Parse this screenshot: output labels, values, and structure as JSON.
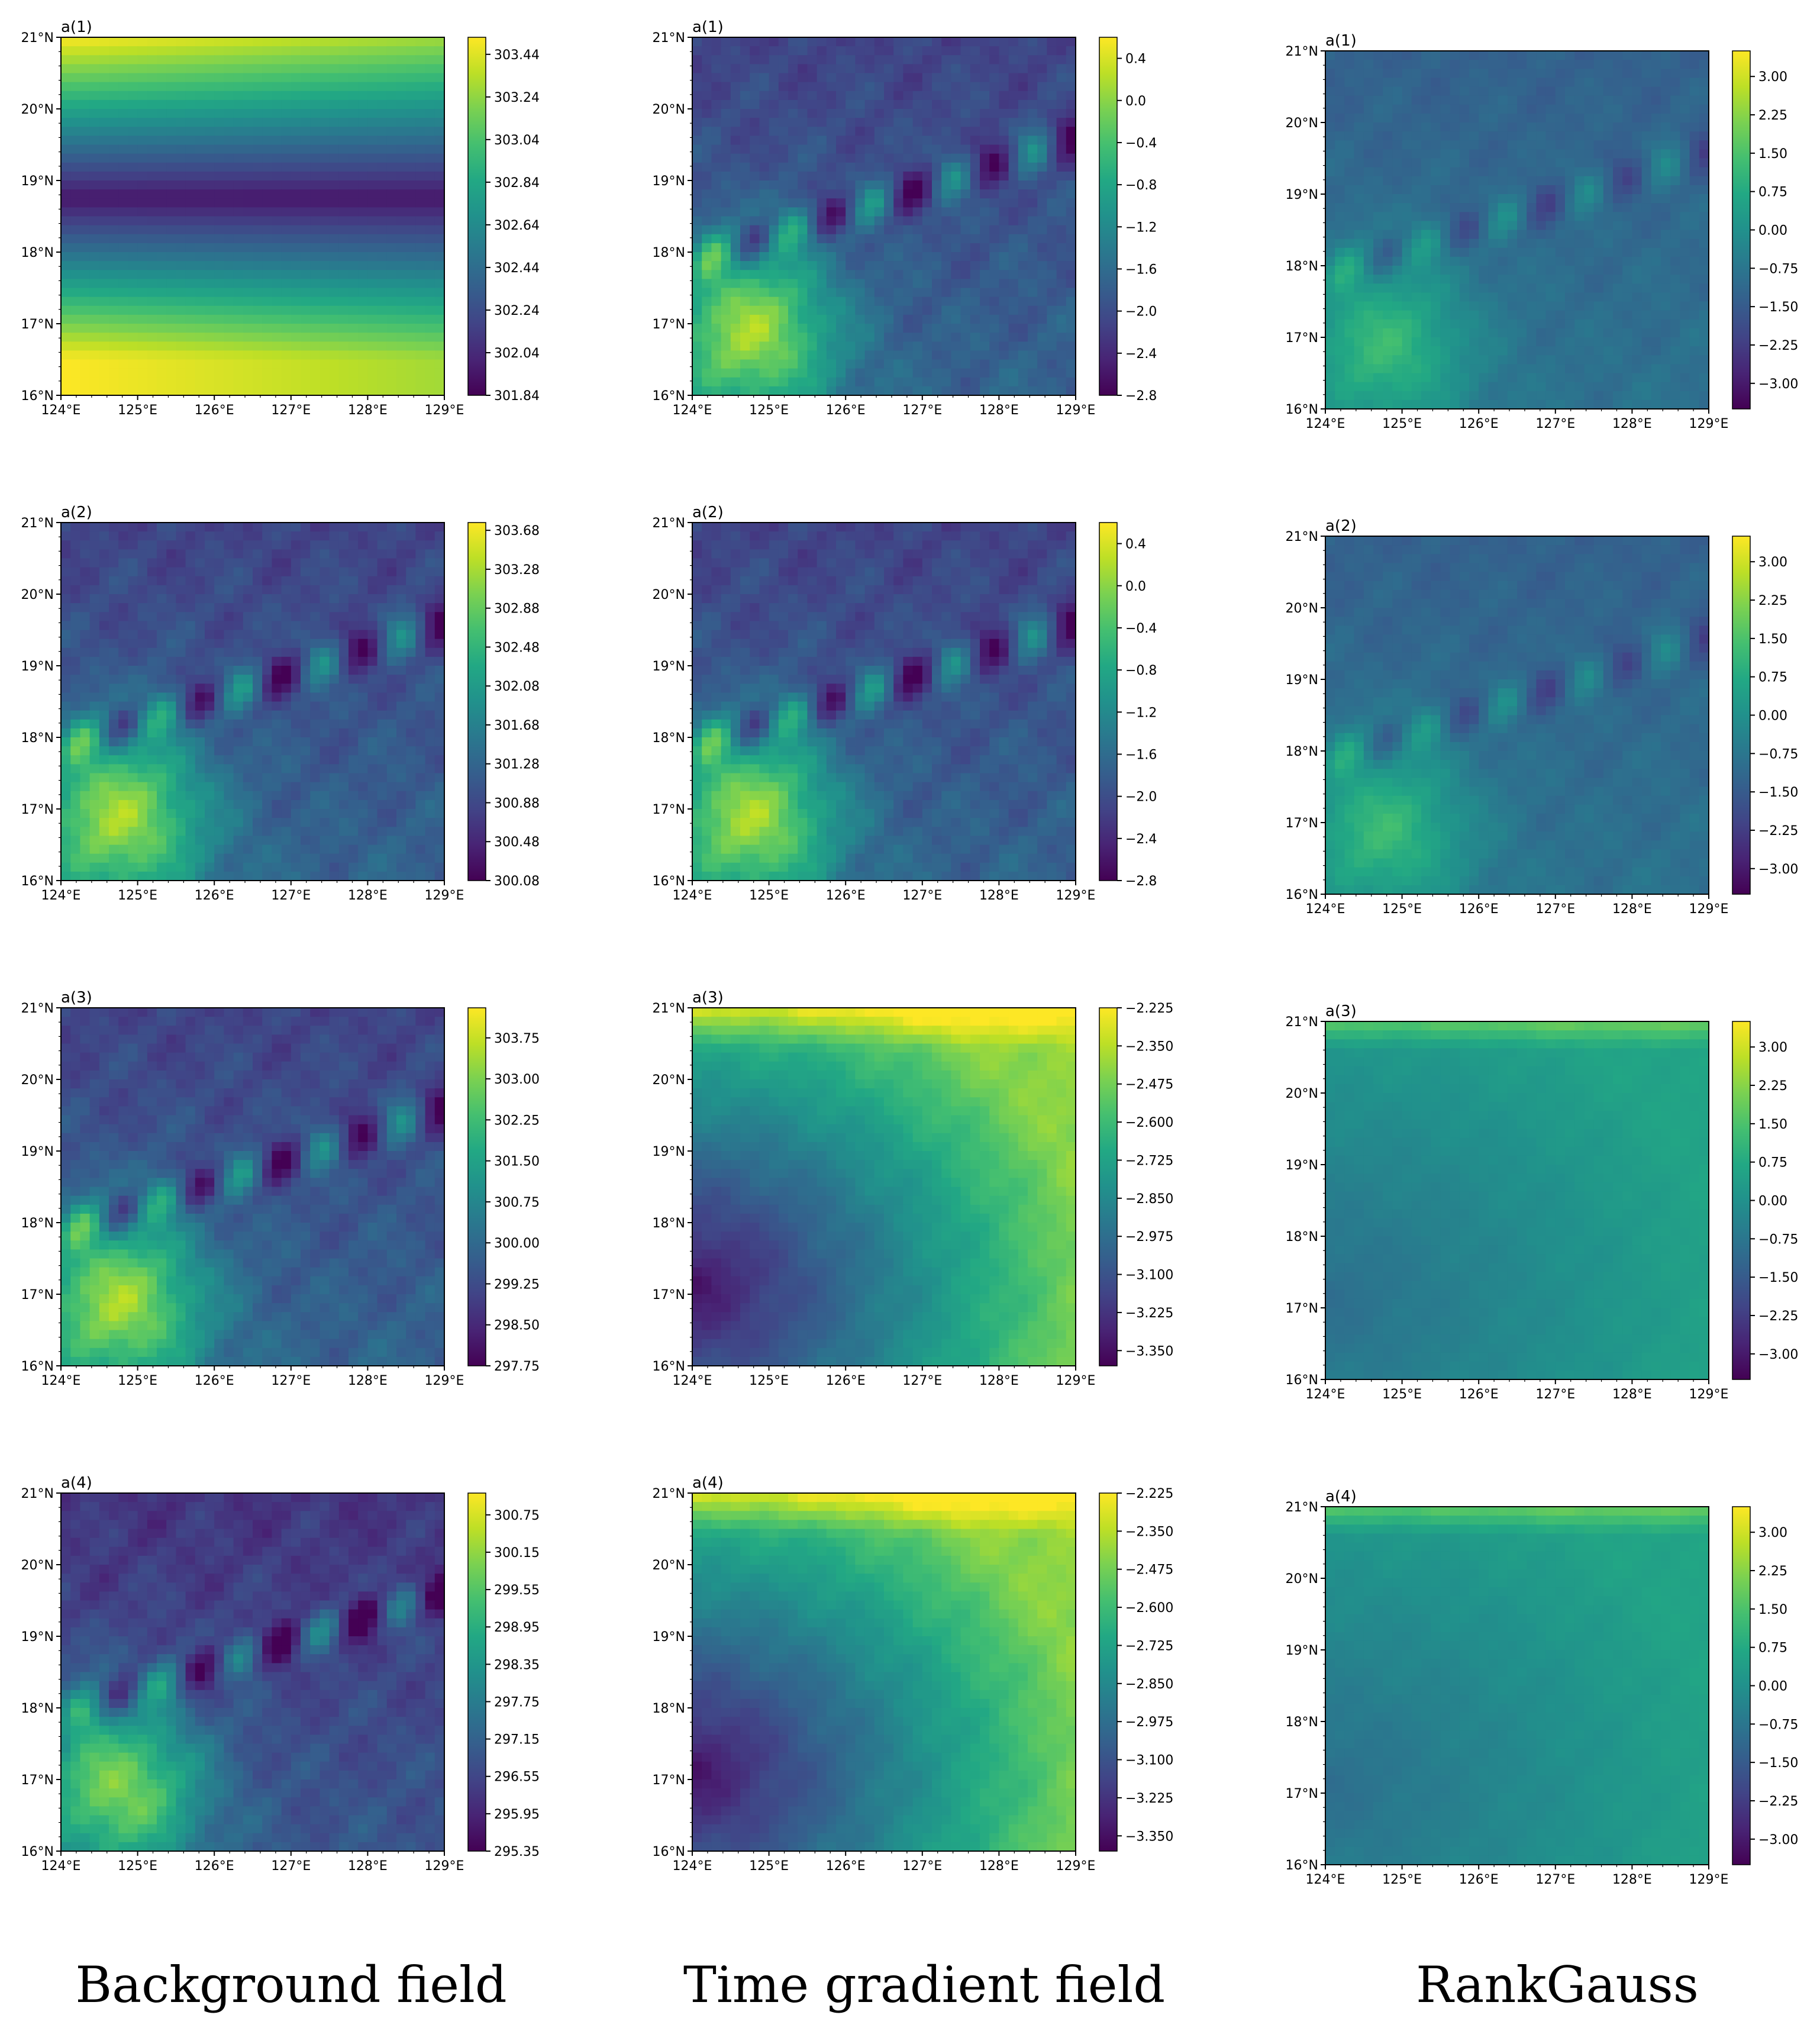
{
  "colors": {
    "viridis_stops": [
      "#440154",
      "#482475",
      "#414487",
      "#355f8d",
      "#2a788e",
      "#21918c",
      "#22a884",
      "#44bf70",
      "#7ad151",
      "#bddf26",
      "#fde725"
    ]
  },
  "column_labels": [
    "Background field",
    "Time gradient field",
    "RankGauss"
  ],
  "lon_ticks": [
    "124°E",
    "125°E",
    "126°E",
    "127°E",
    "128°E",
    "129°E"
  ],
  "lat_ticks": [
    "16°N",
    "17°N",
    "18°N",
    "19°N",
    "20°N",
    "21°N"
  ],
  "chart_data": [
    {
      "type": "heatmap",
      "id": "bg-1",
      "column": 0,
      "row": 0,
      "title": "a(1)",
      "pattern": "band",
      "lon_range": [
        124,
        129
      ],
      "lat_range": [
        16,
        21
      ],
      "colorbar": {
        "range": [
          301.84,
          303.52
        ],
        "ticks": [
          "303.44",
          "303.24",
          "303.04",
          "302.84",
          "302.64",
          "302.44",
          "302.24",
          "302.04",
          "301.84"
        ],
        "values": [
          303.44,
          303.24,
          303.04,
          302.84,
          302.64,
          302.44,
          302.24,
          302.04,
          301.84
        ]
      }
    },
    {
      "type": "heatmap",
      "id": "tg-1",
      "column": 1,
      "row": 0,
      "title": "a(1)",
      "pattern": "terrain",
      "lon_range": [
        124,
        129
      ],
      "lat_range": [
        16,
        21
      ],
      "colorbar": {
        "range": [
          -2.8,
          0.6
        ],
        "ticks": [
          "0.4",
          "0.0",
          "−0.4",
          "−0.8",
          "−1.2",
          "−1.6",
          "−2.0",
          "−2.4",
          "−2.8"
        ],
        "values": [
          0.4,
          0.0,
          -0.4,
          -0.8,
          -1.2,
          -1.6,
          -2.0,
          -2.4,
          -2.8
        ]
      }
    },
    {
      "type": "heatmap",
      "id": "rg-1",
      "column": 2,
      "row": 0,
      "title": "a(1)",
      "pattern": "terrain-soft",
      "lon_range": [
        124,
        129
      ],
      "lat_range": [
        16,
        21
      ],
      "colorbar": {
        "range": [
          -3.5,
          3.5
        ],
        "ticks": [
          "3.00",
          "2.25",
          "1.50",
          "0.75",
          "0.00",
          "−0.75",
          "−1.50",
          "−2.25",
          "−3.00"
        ],
        "values": [
          3.0,
          2.25,
          1.5,
          0.75,
          0.0,
          -0.75,
          -1.5,
          -2.25,
          -3.0
        ]
      }
    },
    {
      "type": "heatmap",
      "id": "bg-2",
      "column": 0,
      "row": 1,
      "title": "a(2)",
      "pattern": "terrain",
      "lon_range": [
        124,
        129
      ],
      "lat_range": [
        16,
        21
      ],
      "colorbar": {
        "range": [
          300.08,
          303.76
        ],
        "ticks": [
          "303.68",
          "303.28",
          "302.88",
          "302.48",
          "302.08",
          "301.68",
          "301.28",
          "300.88",
          "300.48",
          "300.08"
        ],
        "values": [
          303.68,
          303.28,
          302.88,
          302.48,
          302.08,
          301.68,
          301.28,
          300.88,
          300.48,
          300.08
        ]
      }
    },
    {
      "type": "heatmap",
      "id": "tg-2",
      "column": 1,
      "row": 1,
      "title": "a(2)",
      "pattern": "terrain",
      "lon_range": [
        124,
        129
      ],
      "lat_range": [
        16,
        21
      ],
      "colorbar": {
        "range": [
          -2.8,
          0.6
        ],
        "ticks": [
          "0.4",
          "0.0",
          "−0.4",
          "−0.8",
          "−1.2",
          "−1.6",
          "−2.0",
          "−2.4",
          "−2.8"
        ],
        "values": [
          0.4,
          0.0,
          -0.4,
          -0.8,
          -1.2,
          -1.6,
          -2.0,
          -2.4,
          -2.8
        ]
      }
    },
    {
      "type": "heatmap",
      "id": "rg-2",
      "column": 2,
      "row": 1,
      "title": "a(2)",
      "pattern": "terrain-soft",
      "lon_range": [
        124,
        129
      ],
      "lat_range": [
        16,
        21
      ],
      "colorbar": {
        "range": [
          -3.5,
          3.5
        ],
        "ticks": [
          "3.00",
          "2.25",
          "1.50",
          "0.75",
          "0.00",
          "−0.75",
          "−1.50",
          "−2.25",
          "−3.00"
        ],
        "values": [
          3.0,
          2.25,
          1.5,
          0.75,
          0.0,
          -0.75,
          -1.5,
          -2.25,
          -3.0
        ]
      }
    },
    {
      "type": "heatmap",
      "id": "bg-3",
      "column": 0,
      "row": 2,
      "title": "a(3)",
      "pattern": "terrain",
      "lon_range": [
        124,
        129
      ],
      "lat_range": [
        16,
        21
      ],
      "colorbar": {
        "range": [
          297.75,
          304.3
        ],
        "ticks": [
          "303.75",
          "303.00",
          "302.25",
          "301.50",
          "300.75",
          "300.00",
          "299.25",
          "298.50",
          "297.75"
        ],
        "values": [
          303.75,
          303.0,
          302.25,
          301.5,
          300.75,
          300.0,
          299.25,
          298.5,
          297.75
        ]
      }
    },
    {
      "type": "heatmap",
      "id": "tg-3",
      "column": 1,
      "row": 2,
      "title": "a(3)",
      "pattern": "corner",
      "lon_range": [
        124,
        129
      ],
      "lat_range": [
        16,
        21
      ],
      "colorbar": {
        "range": [
          -3.4,
          -2.225
        ],
        "ticks": [
          "−2.225",
          "−2.350",
          "−2.475",
          "−2.600",
          "−2.725",
          "−2.850",
          "−2.975",
          "−3.100",
          "−3.225",
          "−3.350"
        ],
        "values": [
          -2.225,
          -2.35,
          -2.475,
          -2.6,
          -2.725,
          -2.85,
          -2.975,
          -3.1,
          -3.225,
          -3.35
        ]
      }
    },
    {
      "type": "heatmap",
      "id": "rg-3",
      "column": 2,
      "row": 2,
      "title": "a(3)",
      "pattern": "corner-soft",
      "lon_range": [
        124,
        129
      ],
      "lat_range": [
        16,
        21
      ],
      "colorbar": {
        "range": [
          -3.5,
          3.5
        ],
        "ticks": [
          "3.00",
          "2.25",
          "1.50",
          "0.75",
          "0.00",
          "−0.75",
          "−1.50",
          "−2.25",
          "−3.00"
        ],
        "values": [
          3.0,
          2.25,
          1.5,
          0.75,
          0.0,
          -0.75,
          -1.5,
          -2.25,
          -3.0
        ]
      }
    },
    {
      "type": "heatmap",
      "id": "bg-4",
      "column": 0,
      "row": 3,
      "title": "a(4)",
      "pattern": "terrain-dark",
      "lon_range": [
        124,
        129
      ],
      "lat_range": [
        16,
        21
      ],
      "colorbar": {
        "range": [
          295.35,
          301.1
        ],
        "ticks": [
          "300.75",
          "300.15",
          "299.55",
          "298.95",
          "298.35",
          "297.75",
          "297.15",
          "296.55",
          "295.95",
          "295.35"
        ],
        "values": [
          300.75,
          300.15,
          299.55,
          298.95,
          298.35,
          297.75,
          297.15,
          296.55,
          295.95,
          295.35
        ]
      }
    },
    {
      "type": "heatmap",
      "id": "tg-4",
      "column": 1,
      "row": 3,
      "title": "a(4)",
      "pattern": "corner",
      "lon_range": [
        124,
        129
      ],
      "lat_range": [
        16,
        21
      ],
      "colorbar": {
        "range": [
          -3.4,
          -2.225
        ],
        "ticks": [
          "−2.225",
          "−2.350",
          "−2.475",
          "−2.600",
          "−2.725",
          "−2.850",
          "−2.975",
          "−3.100",
          "−3.225",
          "−3.350"
        ],
        "values": [
          -2.225,
          -2.35,
          -2.475,
          -2.6,
          -2.725,
          -2.85,
          -2.975,
          -3.1,
          -3.225,
          -3.35
        ]
      }
    },
    {
      "type": "heatmap",
      "id": "rg-4",
      "column": 2,
      "row": 3,
      "title": "a(4)",
      "pattern": "corner-soft",
      "lon_range": [
        124,
        129
      ],
      "lat_range": [
        16,
        21
      ],
      "colorbar": {
        "range": [
          -3.5,
          3.5
        ],
        "ticks": [
          "3.00",
          "2.25",
          "1.50",
          "0.75",
          "0.00",
          "−0.75",
          "−1.50",
          "−2.25",
          "−3.00"
        ],
        "values": [
          3.0,
          2.25,
          1.5,
          0.75,
          0.0,
          -0.75,
          -1.5,
          -2.25,
          -3.0
        ]
      }
    }
  ]
}
